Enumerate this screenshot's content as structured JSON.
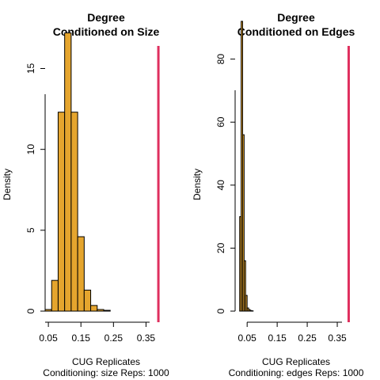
{
  "colors": {
    "bar_fill": "#E5A52E",
    "bar_stroke": "#000000",
    "observed_line": "#DF2F5E"
  },
  "chart_data": [
    {
      "type": "bar",
      "title_line1": "Degree",
      "title_line2": "Conditioned on Size",
      "xlabel": "CUG Replicates",
      "subtitle": "Conditioning: size Reps: 1000",
      "ylabel": "Density",
      "xlim": [
        0.04,
        0.4
      ],
      "ylim": [
        0,
        18.5
      ],
      "xticks": [
        0.05,
        0.15,
        0.25,
        0.35
      ],
      "xtick_labels": [
        "0.05",
        "0.15",
        "0.25",
        "0.35"
      ],
      "yticks": [
        0,
        5,
        10,
        15
      ],
      "ytick_labels": [
        "0",
        "5",
        "10",
        "15"
      ],
      "bin_edges": [
        0.04,
        0.06,
        0.08,
        0.1,
        0.12,
        0.14,
        0.16,
        0.18,
        0.2,
        0.22,
        0.24
      ],
      "values": [
        0.1,
        1.9,
        12.3,
        17.2,
        12.3,
        4.6,
        1.3,
        0.35,
        0.1,
        0.05
      ],
      "observed": 0.388
    },
    {
      "type": "bar",
      "title_line1": "Degree",
      "title_line2": "Conditioned on Edges",
      "xlabel": "CUG Replicates",
      "subtitle": "Conditioning: edges Reps: 1000",
      "ylabel": "Density",
      "xlim": [
        0.01,
        0.4
      ],
      "ylim": [
        0,
        95
      ],
      "xticks": [
        0.05,
        0.15,
        0.25,
        0.35
      ],
      "xtick_labels": [
        "0.05",
        "0.15",
        "0.25",
        "0.35"
      ],
      "yticks": [
        0,
        20,
        40,
        60,
        80
      ],
      "ytick_labels": [
        "0",
        "20",
        "40",
        "60",
        "80"
      ],
      "bin_edges": [
        0.025,
        0.03,
        0.035,
        0.04,
        0.045,
        0.05,
        0.055,
        0.06,
        0.065,
        0.07
      ],
      "values": [
        30,
        92,
        56,
        16,
        5,
        1,
        0.5,
        0.2,
        0.1
      ],
      "observed": 0.388
    }
  ]
}
